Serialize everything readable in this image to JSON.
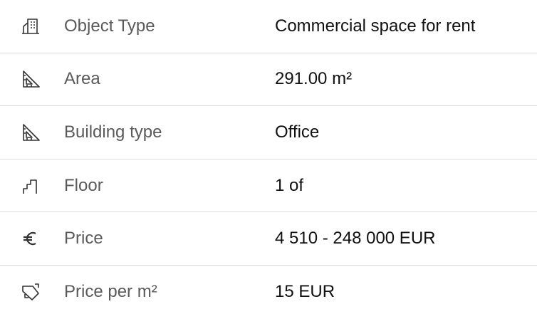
{
  "rows": [
    {
      "label": "Object Type",
      "value": "Commercial space for rent"
    },
    {
      "label": "Area",
      "value": "291.00 m²"
    },
    {
      "label": "Building type",
      "value": "Office"
    },
    {
      "label": "Floor",
      "value": "1 of"
    },
    {
      "label": "Price",
      "value": "4 510 - 248 000 EUR"
    },
    {
      "label": "Price per m²",
      "value": "15 EUR"
    }
  ]
}
